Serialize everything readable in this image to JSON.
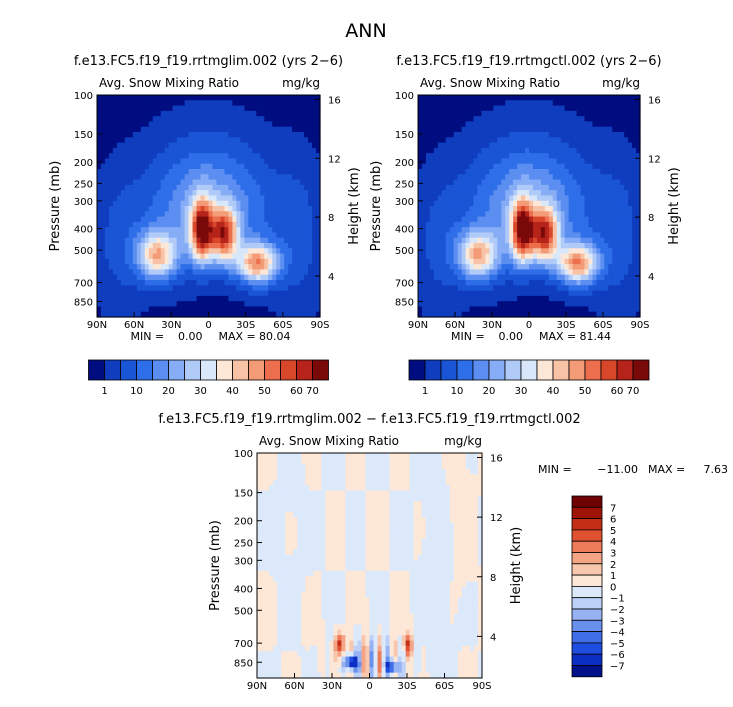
{
  "figure_title": "ANN",
  "colors": {
    "abs_levels": [
      "#000d80",
      "#0f3dbe",
      "#1a55d6",
      "#2e6ee8",
      "#5b8ef0",
      "#86adf5",
      "#b1cbf8",
      "#d9e7fb",
      "#fde8d8",
      "#f8c2a6",
      "#f39a77",
      "#ec6e4c",
      "#d9472b",
      "#b5231a",
      "#7a0a0a"
    ],
    "diff_levels": [
      "#00118a",
      "#0b2fc2",
      "#1d4ee0",
      "#3f6ee8",
      "#6a90ee",
      "#96b2f3",
      "#bdd1f8",
      "#dce9fb",
      "#fde8d8",
      "#f8c7ad",
      "#f3a585",
      "#ed7b59",
      "#e0522f",
      "#c42d16",
      "#9e1208",
      "#6e0303"
    ]
  },
  "chart_data": [
    {
      "type": "heatmap",
      "title": "f.e13.FC5.f19_f19.rrtmglim.002 (yrs 2−6)",
      "variable": "Avg. Snow Mixing Ratio",
      "units": "mg/kg",
      "ylabel": "Pressure (mb)",
      "y2label": "Height (km)",
      "x_ticks": [
        "90N",
        "60N",
        "30N",
        "0",
        "30S",
        "60S",
        "90S"
      ],
      "y_ticks": [
        "100",
        "150",
        "200",
        "250",
        "300",
        "400",
        "500",
        "700",
        "850"
      ],
      "y2_ticks": [
        "16",
        "12",
        "8",
        "4"
      ],
      "min_label": "MIN =",
      "min_value": "0.00",
      "max_label": "MAX =",
      "max_value": "80.04",
      "colorbar_labels": [
        "1",
        "10",
        "20",
        "30",
        "40",
        "50",
        "60",
        "70"
      ],
      "colorbar_levels": [
        1,
        5,
        10,
        15,
        20,
        25,
        30,
        35,
        40,
        45,
        50,
        55,
        60,
        65,
        70
      ],
      "field_max": 80.04
    },
    {
      "type": "heatmap",
      "title": "f.e13.FC5.f19_f19.rrtmgctl.002 (yrs 2−6)",
      "variable": "Avg. Snow Mixing Ratio",
      "units": "mg/kg",
      "ylabel": "Pressure (mb)",
      "y2label": "Height (km)",
      "x_ticks": [
        "90N",
        "60N",
        "30N",
        "0",
        "30S",
        "60S",
        "90S"
      ],
      "y_ticks": [
        "100",
        "150",
        "200",
        "250",
        "300",
        "400",
        "500",
        "700",
        "850"
      ],
      "y2_ticks": [
        "16",
        "12",
        "8",
        "4"
      ],
      "min_label": "MIN =",
      "min_value": "0.00",
      "max_label": "MAX =",
      "max_value": "81.44",
      "colorbar_labels": [
        "1",
        "10",
        "20",
        "30",
        "40",
        "50",
        "60",
        "70"
      ],
      "colorbar_levels": [
        1,
        5,
        10,
        15,
        20,
        25,
        30,
        35,
        40,
        45,
        50,
        55,
        60,
        65,
        70
      ],
      "field_max": 81.44
    },
    {
      "type": "heatmap",
      "title": "f.e13.FC5.f19_f19.rrtmglim.002 − f.e13.FC5.f19_f19.rrtmgctl.002",
      "variable": "Avg. Snow Mixing Ratio",
      "units": "mg/kg",
      "ylabel": "Pressure (mb)",
      "y2label": "Height (km)",
      "x_ticks": [
        "90N",
        "60N",
        "30N",
        "0",
        "30S",
        "60S",
        "90S"
      ],
      "y_ticks": [
        "100",
        "150",
        "200",
        "250",
        "300",
        "400",
        "500",
        "700",
        "850"
      ],
      "y2_ticks": [
        "16",
        "12",
        "8",
        "4"
      ],
      "min_label": "MIN =",
      "min_value": "−11.00",
      "max_label": "MAX =",
      "max_value": "7.63",
      "colorbar_labels": [
        "7",
        "6",
        "5",
        "4",
        "3",
        "2",
        "1",
        "0",
        "−1",
        "−2",
        "−3",
        "−4",
        "−5",
        "−6",
        "−7"
      ]
    }
  ]
}
